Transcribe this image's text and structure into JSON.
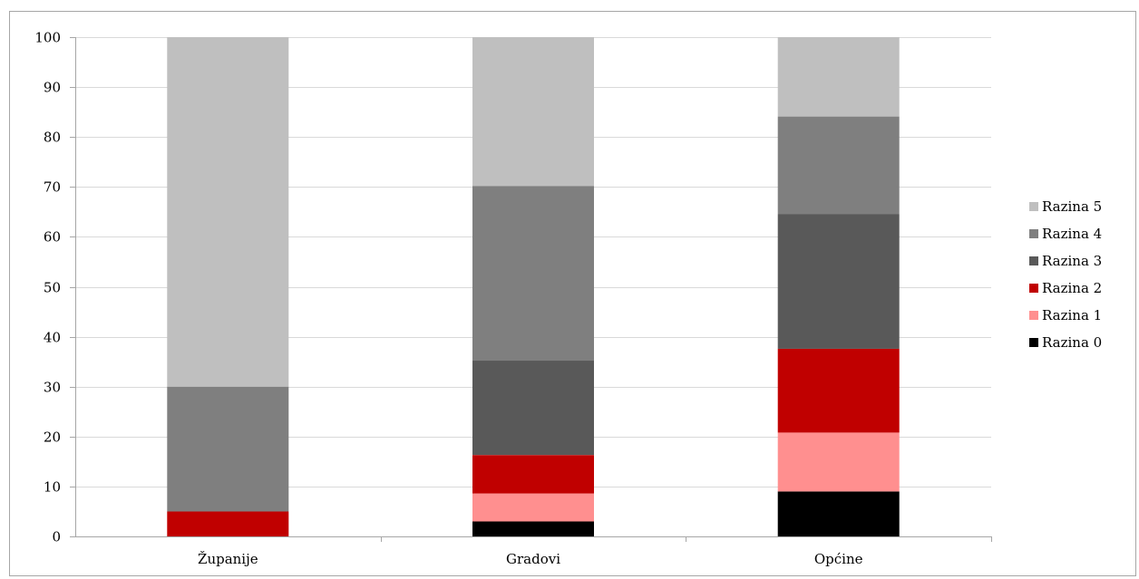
{
  "caption": "",
  "chart_data": {
    "type": "bar",
    "stacked": true,
    "title": "",
    "xlabel": "",
    "ylabel": "",
    "ylim": [
      0,
      100
    ],
    "yticks": [
      0,
      10,
      20,
      30,
      40,
      50,
      60,
      70,
      80,
      90,
      100
    ],
    "ytick_labels": [
      "0",
      "10",
      "20",
      "30",
      "40",
      "50",
      "60",
      "70",
      "80",
      "90",
      "100"
    ],
    "grid": true,
    "legend_position": "right",
    "categories": [
      "Županije",
      "Gradovi",
      "Općine"
    ],
    "series": [
      {
        "name": "Razina 0",
        "color": "#000000",
        "values": [
          0,
          3,
          9
        ]
      },
      {
        "name": "Razina 1",
        "color": "#ff8f8f",
        "values": [
          0,
          5.6,
          11.8
        ]
      },
      {
        "name": "Razina 2",
        "color": "#c00000",
        "values": [
          5,
          7.7,
          16.8
        ]
      },
      {
        "name": "Razina 3",
        "color": "#595959",
        "values": [
          0,
          18.9,
          27
        ]
      },
      {
        "name": "Razina 4",
        "color": "#7f7f7f",
        "values": [
          25,
          35,
          19.5
        ]
      },
      {
        "name": "Razina 5",
        "color": "#bfbfbf",
        "values": [
          70,
          29.8,
          15.9
        ]
      }
    ]
  }
}
